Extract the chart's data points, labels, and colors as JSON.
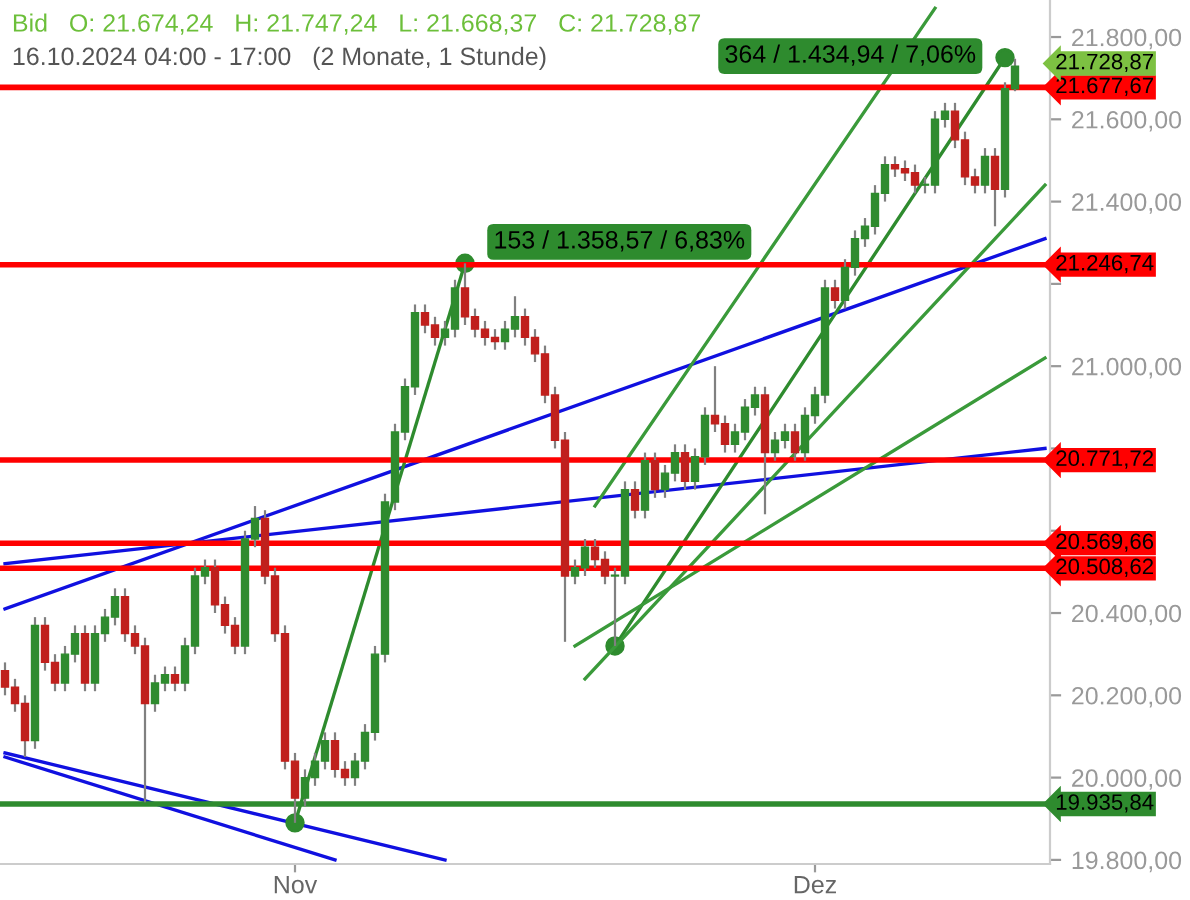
{
  "chart_data": {
    "type": "candlestick",
    "title": "Bid   O: 21.674,24   H: 21.747,24   L: 21.668,37   C: 21.728,87",
    "subtitle": "16.10.2024 04:00 - 17:00   (2 Monate, 1 Stunde)",
    "categories": [
      null,
      null,
      null,
      null,
      null,
      null,
      null,
      null,
      null,
      null,
      null,
      null,
      null,
      null,
      null,
      null,
      null,
      null,
      null,
      null,
      null,
      null,
      null,
      null,
      null,
      null,
      null,
      null,
      null,
      "Nov",
      null,
      null,
      null,
      null,
      null,
      null,
      null,
      null,
      null,
      null,
      null,
      null,
      null,
      null,
      null,
      null,
      null,
      null,
      null,
      null,
      null,
      null,
      null,
      null,
      null,
      null,
      null,
      null,
      null,
      null,
      null,
      null,
      null,
      null,
      null,
      null,
      null,
      null,
      null,
      null,
      null,
      null,
      null,
      null,
      null,
      null,
      null,
      null,
      null,
      null,
      null,
      "Dez",
      null,
      null,
      null,
      null,
      null,
      null,
      null,
      null,
      null,
      null,
      null,
      null,
      null,
      null,
      null,
      null,
      null,
      null,
      null,
      null,
      null,
      null,
      null
    ],
    "ohlc": [
      [
        20260,
        20280,
        20200,
        20220
      ],
      [
        20220,
        20240,
        20160,
        20180
      ],
      [
        20180,
        20200,
        20050,
        20090
      ],
      [
        20090,
        20390,
        20070,
        20370
      ],
      [
        20370,
        20390,
        20260,
        20280
      ],
      [
        20280,
        20300,
        20210,
        20230
      ],
      [
        20230,
        20320,
        20210,
        20300
      ],
      [
        20300,
        20370,
        20280,
        20350
      ],
      [
        20350,
        20370,
        20210,
        20230
      ],
      [
        20230,
        20370,
        20210,
        20350
      ],
      [
        20350,
        20410,
        20330,
        20390
      ],
      [
        20390,
        20460,
        20370,
        20440
      ],
      [
        20440,
        20460,
        20330,
        20350
      ],
      [
        20350,
        20370,
        20300,
        20320
      ],
      [
        20320,
        20340,
        19940,
        20180
      ],
      [
        20180,
        20250,
        20160,
        20230
      ],
      [
        20230,
        20270,
        20210,
        20250
      ],
      [
        20250,
        20270,
        20210,
        20230
      ],
      [
        20230,
        20340,
        20210,
        20320
      ],
      [
        20320,
        20510,
        20300,
        20490
      ],
      [
        20490,
        20530,
        20470,
        20510
      ],
      [
        20510,
        20530,
        20400,
        20420
      ],
      [
        20420,
        20440,
        20350,
        20370
      ],
      [
        20370,
        20390,
        20300,
        20320
      ],
      [
        20320,
        20600,
        20300,
        20580
      ],
      [
        20580,
        20660,
        20560,
        20630
      ],
      [
        20630,
        20650,
        20470,
        20490
      ],
      [
        20490,
        20510,
        20330,
        20350
      ],
      [
        20350,
        20370,
        20020,
        20040
      ],
      [
        20040,
        20060,
        19890,
        19950
      ],
      [
        19950,
        20020,
        19930,
        20000
      ],
      [
        20000,
        20060,
        19980,
        20040
      ],
      [
        20040,
        20110,
        20020,
        20090
      ],
      [
        20090,
        20110,
        20000,
        20020
      ],
      [
        20020,
        20040,
        19980,
        20000
      ],
      [
        20000,
        20060,
        19980,
        20040
      ],
      [
        20040,
        20130,
        20020,
        20110
      ],
      [
        20110,
        20320,
        20090,
        20300
      ],
      [
        20300,
        20690,
        20280,
        20670
      ],
      [
        20670,
        20860,
        20650,
        20840
      ],
      [
        20840,
        20970,
        20820,
        20950
      ],
      [
        20950,
        21150,
        20930,
        21130
      ],
      [
        21130,
        21150,
        21080,
        21100
      ],
      [
        21100,
        21120,
        21050,
        21070
      ],
      [
        21070,
        21110,
        21050,
        21090
      ],
      [
        21090,
        21210,
        21070,
        21190
      ],
      [
        21190,
        21250,
        21100,
        21120
      ],
      [
        21120,
        21140,
        21070,
        21090
      ],
      [
        21090,
        21110,
        21050,
        21070
      ],
      [
        21070,
        21090,
        21040,
        21060
      ],
      [
        21060,
        21110,
        21040,
        21090
      ],
      [
        21090,
        21170,
        21070,
        21120
      ],
      [
        21120,
        21140,
        21050,
        21070
      ],
      [
        21070,
        21090,
        21010,
        21030
      ],
      [
        21030,
        21050,
        20910,
        20930
      ],
      [
        20930,
        20950,
        20800,
        20820
      ],
      [
        20820,
        20840,
        20330,
        20490
      ],
      [
        20490,
        20530,
        20470,
        20510
      ],
      [
        20510,
        20580,
        20490,
        20560
      ],
      [
        20560,
        20580,
        20510,
        20530
      ],
      [
        20530,
        20550,
        20470,
        20490
      ],
      [
        20490,
        20510,
        20320,
        20490
      ],
      [
        20490,
        20720,
        20470,
        20700
      ],
      [
        20700,
        20720,
        20630,
        20650
      ],
      [
        20650,
        20790,
        20630,
        20770
      ],
      [
        20770,
        20790,
        20680,
        20700
      ],
      [
        20700,
        20760,
        20680,
        20740
      ],
      [
        20740,
        20810,
        20720,
        20790
      ],
      [
        20790,
        20810,
        20700,
        20720
      ],
      [
        20720,
        20800,
        20700,
        20780
      ],
      [
        20780,
        20900,
        20760,
        20880
      ],
      [
        20880,
        21000,
        20840,
        20860
      ],
      [
        20860,
        20880,
        20790,
        20810
      ],
      [
        20810,
        20860,
        20790,
        20840
      ],
      [
        20840,
        20920,
        20820,
        20900
      ],
      [
        20900,
        20950,
        20880,
        20930
      ],
      [
        20930,
        20950,
        20640,
        20790
      ],
      [
        20790,
        20840,
        20770,
        20820
      ],
      [
        20820,
        20860,
        20800,
        20840
      ],
      [
        20840,
        20860,
        20770,
        20790
      ],
      [
        20790,
        20900,
        20770,
        20880
      ],
      [
        20880,
        20950,
        20860,
        20930
      ],
      [
        20930,
        21210,
        20910,
        21190
      ],
      [
        21190,
        21210,
        21140,
        21160
      ],
      [
        21160,
        21260,
        21140,
        21240
      ],
      [
        21240,
        21330,
        21220,
        21310
      ],
      [
        21310,
        21360,
        21290,
        21340
      ],
      [
        21340,
        21440,
        21320,
        21420
      ],
      [
        21420,
        21510,
        21400,
        21490
      ],
      [
        21490,
        21510,
        21460,
        21480
      ],
      [
        21480,
        21500,
        21450,
        21470
      ],
      [
        21470,
        21490,
        21420,
        21440
      ],
      [
        21440,
        21460,
        21420,
        21440
      ],
      [
        21440,
        21620,
        21420,
        21600
      ],
      [
        21600,
        21640,
        21580,
        21620
      ],
      [
        21620,
        21640,
        21530,
        21550
      ],
      [
        21550,
        21570,
        21440,
        21460
      ],
      [
        21460,
        21480,
        21420,
        21440
      ],
      [
        21440,
        21530,
        21420,
        21510
      ],
      [
        21510,
        21530,
        21340,
        21430
      ],
      [
        21430,
        21690,
        21410,
        21674.24
      ],
      [
        21674.24,
        21747.24,
        21668.37,
        21728.87
      ],
      null,
      null,
      null
    ],
    "colors": [
      "#c0201d",
      "#c0201d",
      "#c0201d",
      "#2e8b2e",
      "#c0201d",
      "#c0201d",
      "#2e8b2e",
      "#2e8b2e",
      "#c0201d",
      "#2e8b2e",
      "#2e8b2e",
      "#2e8b2e",
      "#c0201d",
      "#c0201d",
      "#c0201d",
      "#2e8b2e",
      "#2e8b2e",
      "#c0201d",
      "#2e8b2e",
      "#2e8b2e",
      "#2e8b2e",
      "#c0201d",
      "#c0201d",
      "#c0201d",
      "#2e8b2e",
      "#2e8b2e",
      "#c0201d",
      "#c0201d",
      "#c0201d",
      "#c0201d",
      "#2e8b2e",
      "#2e8b2e",
      "#2e8b2e",
      "#c0201d",
      "#c0201d",
      "#2e8b2e",
      "#2e8b2e",
      "#2e8b2e",
      "#2e8b2e",
      "#2e8b2e",
      "#2e8b2e",
      "#2e8b2e",
      "#c0201d",
      "#c0201d",
      "#2e8b2e",
      "#2e8b2e",
      "#c0201d",
      "#c0201d",
      "#c0201d",
      "#c0201d",
      "#2e8b2e",
      "#2e8b2e",
      "#c0201d",
      "#c0201d",
      "#c0201d",
      "#c0201d",
      "#c0201d",
      "#2e8b2e",
      "#2e8b2e",
      "#c0201d",
      "#c0201d",
      "#2e8b2e",
      "#2e8b2e",
      "#c0201d",
      "#2e8b2e",
      "#c0201d",
      "#2e8b2e",
      "#2e8b2e",
      "#c0201d",
      "#2e8b2e",
      "#2e8b2e",
      "#c0201d",
      "#c0201d",
      "#2e8b2e",
      "#2e8b2e",
      "#2e8b2e",
      "#c0201d",
      "#2e8b2e",
      "#2e8b2e",
      "#c0201d",
      "#2e8b2e",
      "#2e8b2e",
      "#2e8b2e",
      "#c0201d",
      "#2e8b2e",
      "#2e8b2e",
      "#2e8b2e",
      "#2e8b2e",
      "#2e8b2e",
      "#c0201d",
      "#c0201d",
      "#c0201d",
      "#2e8b2e",
      "#2e8b2e",
      "#2e8b2e",
      "#c0201d",
      "#c0201d",
      "#c0201d",
      "#2e8b2e",
      "#c0201d",
      "#2e8b2e",
      "#2e8b2e",
      null,
      null,
      null
    ],
    "series": [
      {
        "type": "line",
        "color": "#1010e0",
        "values": [
          20410,
          null,
          null,
          null,
          null,
          null,
          null,
          null,
          null,
          null,
          null,
          null,
          null,
          null,
          null,
          null,
          null,
          null,
          null,
          null,
          null,
          null,
          null,
          null,
          null,
          null,
          null,
          null,
          null,
          null,
          null,
          null,
          null,
          null,
          null,
          null,
          null,
          null,
          null,
          null,
          null,
          null,
          null,
          null,
          null,
          null,
          null,
          null,
          null,
          null,
          null,
          null,
          null,
          null,
          null,
          null,
          null,
          null,
          null,
          null,
          null,
          null,
          null,
          null,
          null,
          null,
          null,
          null,
          null,
          null,
          null,
          null,
          null,
          null,
          null,
          null,
          null,
          null,
          null,
          null,
          null,
          null,
          null,
          null,
          null,
          null,
          null,
          null,
          null,
          null,
          null,
          null,
          null,
          null,
          null,
          null,
          null,
          null,
          null,
          null,
          null,
          null,
          null,
          null,
          21310
        ]
      },
      {
        "type": "line",
        "color": "#1010e0",
        "values": [
          20520,
          null,
          null,
          null,
          null,
          null,
          null,
          null,
          null,
          null,
          null,
          null,
          null,
          null,
          null,
          null,
          null,
          null,
          null,
          null,
          null,
          null,
          null,
          null,
          null,
          null,
          null,
          null,
          null,
          null,
          null,
          null,
          null,
          null,
          null,
          null,
          null,
          null,
          null,
          null,
          null,
          null,
          null,
          null,
          null,
          null,
          null,
          null,
          null,
          null,
          null,
          null,
          null,
          null,
          null,
          null,
          null,
          null,
          null,
          null,
          null,
          null,
          null,
          null,
          null,
          null,
          null,
          null,
          null,
          null,
          null,
          null,
          null,
          null,
          null,
          null,
          null,
          null,
          null,
          null,
          null,
          null,
          null,
          null,
          null,
          null,
          null,
          null,
          null,
          null,
          null,
          null,
          null,
          null,
          null,
          null,
          null,
          null,
          null,
          null,
          null,
          null,
          null,
          null,
          20800
        ]
      },
      {
        "type": "line",
        "color": "#1010e0",
        "values": [
          20050,
          null,
          null,
          null,
          null,
          null,
          null,
          null,
          null,
          null,
          null,
          null,
          null,
          null,
          null,
          null,
          null,
          null,
          null,
          null,
          null,
          null,
          null,
          null,
          null,
          null,
          null,
          null,
          null,
          null,
          null,
          null,
          null,
          19800,
          null,
          null,
          null,
          null,
          null,
          null,
          null,
          null,
          null,
          null,
          null,
          null,
          null,
          null,
          null,
          null,
          null,
          null,
          null,
          null,
          null,
          null,
          null,
          null,
          null,
          null,
          null,
          null,
          null,
          null,
          null,
          null,
          null,
          null,
          null,
          null,
          null,
          null,
          null,
          null,
          null,
          null,
          null,
          null,
          null,
          null,
          null,
          null,
          null,
          null,
          null,
          null,
          null,
          null,
          null,
          null,
          null,
          null,
          null,
          null,
          null,
          null,
          null,
          null,
          null,
          null,
          null,
          null,
          null,
          null,
          null
        ]
      },
      {
        "type": "line",
        "color": "#1010e0",
        "values": [
          20060,
          null,
          null,
          null,
          null,
          null,
          null,
          null,
          null,
          null,
          null,
          null,
          null,
          null,
          null,
          null,
          null,
          null,
          null,
          null,
          null,
          null,
          null,
          null,
          null,
          null,
          null,
          null,
          null,
          null,
          null,
          null,
          null,
          null,
          null,
          null,
          null,
          null,
          null,
          null,
          null,
          null,
          null,
          null,
          19800,
          null,
          null,
          null,
          null,
          null,
          null,
          null,
          null,
          null,
          null,
          null,
          null,
          null,
          null,
          null,
          null,
          null,
          null,
          null,
          null,
          null,
          null,
          null,
          null,
          null,
          null,
          null,
          null,
          null,
          null,
          null,
          null,
          null,
          null,
          null,
          null,
          null,
          null,
          null,
          null,
          null,
          null,
          null,
          null,
          null,
          null,
          null,
          null,
          null,
          null,
          null,
          null,
          null,
          null,
          null,
          null,
          null,
          null,
          null,
          null
        ]
      },
      {
        "type": "line",
        "color": "#2e8b2e",
        "marker": "circle",
        "values": [
          null,
          null,
          null,
          null,
          null,
          null,
          null,
          null,
          null,
          null,
          null,
          null,
          null,
          null,
          null,
          null,
          null,
          null,
          null,
          null,
          null,
          null,
          null,
          null,
          null,
          null,
          null,
          null,
          null,
          19890,
          null,
          null,
          null,
          null,
          null,
          null,
          null,
          null,
          null,
          null,
          null,
          null,
          null,
          null,
          null,
          null,
          21250,
          null,
          null,
          null,
          null,
          null,
          null,
          null,
          null,
          null,
          null,
          null,
          null,
          null,
          null,
          null,
          null,
          null,
          null,
          null,
          null,
          null,
          null,
          null,
          null,
          null,
          null,
          null,
          null,
          null,
          null,
          null,
          null,
          null,
          null,
          null,
          null,
          null,
          null,
          null,
          null,
          null,
          null,
          null,
          null,
          null,
          null,
          null,
          null,
          null,
          null,
          null,
          null,
          null,
          null,
          null,
          null,
          null,
          null
        ]
      },
      {
        "type": "line",
        "color": "#2e8b2e",
        "marker": "circle",
        "values": [
          null,
          null,
          null,
          null,
          null,
          null,
          null,
          null,
          null,
          null,
          null,
          null,
          null,
          null,
          null,
          null,
          null,
          null,
          null,
          null,
          null,
          null,
          null,
          null,
          null,
          null,
          null,
          null,
          null,
          null,
          null,
          null,
          null,
          null,
          null,
          null,
          null,
          null,
          null,
          null,
          null,
          null,
          null,
          null,
          null,
          null,
          null,
          null,
          null,
          null,
          null,
          null,
          null,
          null,
          null,
          null,
          null,
          null,
          null,
          null,
          null,
          20320,
          null,
          null,
          null,
          null,
          null,
          null,
          null,
          null,
          null,
          null,
          null,
          null,
          null,
          null,
          null,
          null,
          null,
          null,
          null,
          null,
          null,
          null,
          null,
          null,
          null,
          null,
          null,
          null,
          null,
          null,
          null,
          null,
          null,
          null,
          null,
          null,
          null,
          null,
          21750,
          null,
          null,
          null,
          null
        ]
      },
      {
        "type": "line",
        "color": "#3a9a3a",
        "values": [
          null,
          null,
          null,
          null,
          null,
          null,
          null,
          null,
          null,
          null,
          null,
          null,
          null,
          null,
          null,
          null,
          null,
          null,
          null,
          null,
          null,
          null,
          null,
          null,
          null,
          null,
          null,
          null,
          null,
          null,
          null,
          null,
          null,
          null,
          null,
          null,
          null,
          null,
          null,
          null,
          null,
          null,
          null,
          null,
          null,
          null,
          null,
          null,
          null,
          null,
          null,
          null,
          null,
          null,
          null,
          null,
          null,
          null,
          null,
          20660,
          null,
          null,
          null,
          null,
          null,
          null,
          null,
          null,
          null,
          null,
          null,
          null,
          null,
          null,
          null,
          null,
          null,
          null,
          null,
          null,
          null,
          null,
          null,
          null,
          null,
          null,
          null,
          null,
          null,
          null,
          null,
          null,
          null,
          21870,
          null,
          null,
          null,
          null,
          null,
          null,
          null,
          null,
          null,
          null,
          null
        ]
      },
      {
        "type": "line",
        "color": "#3a9a3a",
        "values": [
          null,
          null,
          null,
          null,
          null,
          null,
          null,
          null,
          null,
          null,
          null,
          null,
          null,
          null,
          null,
          null,
          null,
          null,
          null,
          null,
          null,
          null,
          null,
          null,
          null,
          null,
          null,
          null,
          null,
          null,
          null,
          null,
          null,
          null,
          null,
          null,
          null,
          null,
          null,
          null,
          null,
          null,
          null,
          null,
          null,
          null,
          null,
          null,
          null,
          null,
          null,
          null,
          null,
          null,
          null,
          null,
          null,
          null,
          20240,
          null,
          null,
          null,
          null,
          null,
          null,
          null,
          null,
          null,
          null,
          null,
          null,
          null,
          null,
          null,
          null,
          null,
          null,
          null,
          null,
          null,
          null,
          null,
          null,
          null,
          null,
          null,
          null,
          null,
          null,
          null,
          null,
          null,
          null,
          null,
          null,
          null,
          null,
          null,
          null,
          null,
          null,
          null,
          null,
          null,
          21440
        ]
      },
      {
        "type": "line",
        "color": "#3a9a3a",
        "values": [
          null,
          null,
          null,
          null,
          null,
          null,
          null,
          null,
          null,
          null,
          null,
          null,
          null,
          null,
          null,
          null,
          null,
          null,
          null,
          null,
          null,
          null,
          null,
          null,
          null,
          null,
          null,
          null,
          null,
          null,
          null,
          null,
          null,
          null,
          null,
          null,
          null,
          null,
          null,
          null,
          null,
          null,
          null,
          null,
          null,
          null,
          null,
          null,
          null,
          null,
          null,
          null,
          null,
          null,
          null,
          null,
          null,
          20320,
          null,
          null,
          null,
          null,
          null,
          null,
          null,
          null,
          null,
          null,
          null,
          null,
          null,
          null,
          null,
          null,
          null,
          null,
          null,
          null,
          null,
          null,
          null,
          null,
          null,
          null,
          null,
          null,
          null,
          null,
          null,
          null,
          null,
          null,
          null,
          null,
          null,
          null,
          null,
          null,
          null,
          null,
          null,
          null,
          null,
          null,
          21020
        ]
      }
    ],
    "ref_lines": [
      {
        "axis": "y",
        "value": 21677.67,
        "label": "21.677,67",
        "color": "#ff0000"
      },
      {
        "axis": "y",
        "value": 21246.74,
        "label": "21.246,74",
        "color": "#ff0000"
      },
      {
        "axis": "y",
        "value": 20771.72,
        "label": "20.771,72",
        "color": "#ff0000"
      },
      {
        "axis": "y",
        "value": 20569.66,
        "label": "20.569,66",
        "color": "#ff0000"
      },
      {
        "axis": "y",
        "value": 20508.62,
        "label": "20.508,62",
        "color": "#ff0000"
      },
      {
        "axis": "y",
        "value": 19935.84,
        "label": "19.935,84",
        "color": "#2e8b2e"
      }
    ],
    "annotations": [
      "153 / 1.358,57 / 6,83%",
      "364 / 1.434,94 / 7,06%",
      "21.728,87"
    ],
    "ylim": [
      19790,
      21890
    ],
    "yticks": [
      {
        "value": 19800,
        "label": "19.800,00"
      },
      {
        "value": 20000,
        "label": "20.000,00"
      },
      {
        "value": 20200,
        "label": "20.200,00"
      },
      {
        "value": 20400,
        "label": "20.400,00"
      },
      {
        "value": 20600,
        "label": null
      },
      {
        "value": 20800,
        "label": null
      },
      {
        "value": 21000,
        "label": "21.000,00"
      },
      {
        "value": 21200,
        "label": null
      },
      {
        "value": 21400,
        "label": "21.400,00"
      },
      {
        "value": 21600,
        "label": "21.600,00"
      },
      {
        "value": 21800,
        "label": "21.800,00"
      }
    ],
    "grid": false,
    "legend": false
  }
}
